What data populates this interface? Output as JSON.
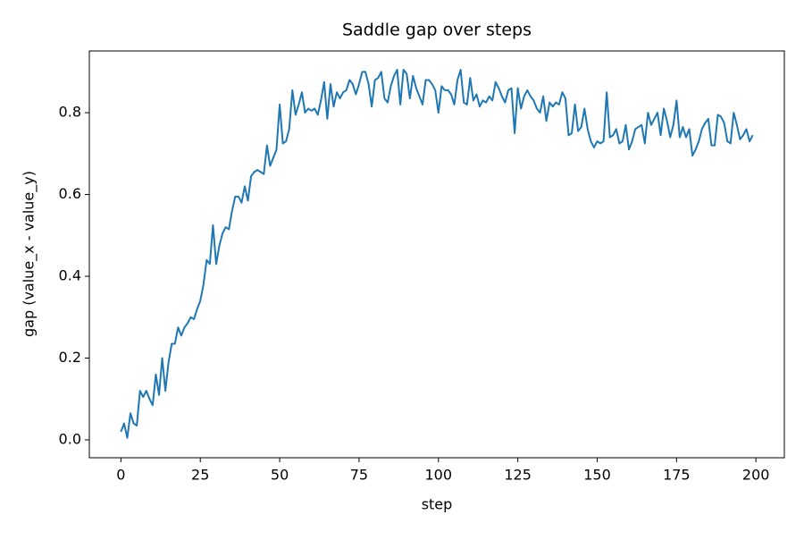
{
  "chart_data": {
    "type": "line",
    "title": "Saddle gap over steps",
    "xlabel": "step",
    "ylabel": "gap (value_x - value_y)",
    "color": "#1f77b4",
    "x": [
      0,
      1,
      2,
      3,
      4,
      5,
      6,
      7,
      8,
      9,
      10,
      11,
      12,
      13,
      14,
      15,
      16,
      17,
      18,
      19,
      20,
      21,
      22,
      23,
      24,
      25,
      26,
      27,
      28,
      29,
      30,
      31,
      32,
      33,
      34,
      35,
      36,
      37,
      38,
      39,
      40,
      41,
      42,
      43,
      44,
      45,
      46,
      47,
      48,
      49,
      50,
      51,
      52,
      53,
      54,
      55,
      56,
      57,
      58,
      59,
      60,
      61,
      62,
      63,
      64,
      65,
      66,
      67,
      68,
      69,
      70,
      71,
      72,
      73,
      74,
      75,
      76,
      77,
      78,
      79,
      80,
      81,
      82,
      83,
      84,
      85,
      86,
      87,
      88,
      89,
      90,
      91,
      92,
      93,
      94,
      95,
      96,
      97,
      98,
      99,
      100,
      101,
      102,
      103,
      104,
      105,
      106,
      107,
      108,
      109,
      110,
      111,
      112,
      113,
      114,
      115,
      116,
      117,
      118,
      119,
      120,
      121,
      122,
      123,
      124,
      125,
      126,
      127,
      128,
      129,
      130,
      131,
      132,
      133,
      134,
      135,
      136,
      137,
      138,
      139,
      140,
      141,
      142,
      143,
      144,
      145,
      146,
      147,
      148,
      149,
      150,
      151,
      152,
      153,
      154,
      155,
      156,
      157,
      158,
      159,
      160,
      161,
      162,
      163,
      164,
      165,
      166,
      167,
      168,
      169,
      170,
      171,
      172,
      173,
      174,
      175,
      176,
      177,
      178,
      179,
      180,
      181,
      182,
      183,
      184,
      185,
      186,
      187,
      188,
      189,
      190,
      191,
      192,
      193,
      194,
      195,
      196,
      197,
      198,
      199
    ],
    "values": [
      0.02,
      0.04,
      0.005,
      0.065,
      0.04,
      0.035,
      0.12,
      0.105,
      0.12,
      0.1,
      0.085,
      0.16,
      0.11,
      0.2,
      0.12,
      0.19,
      0.235,
      0.235,
      0.275,
      0.255,
      0.275,
      0.285,
      0.3,
      0.295,
      0.32,
      0.34,
      0.38,
      0.44,
      0.43,
      0.525,
      0.43,
      0.475,
      0.505,
      0.52,
      0.515,
      0.56,
      0.595,
      0.595,
      0.58,
      0.62,
      0.585,
      0.645,
      0.655,
      0.66,
      0.655,
      0.65,
      0.72,
      0.67,
      0.69,
      0.71,
      0.82,
      0.725,
      0.73,
      0.76,
      0.855,
      0.795,
      0.82,
      0.85,
      0.8,
      0.81,
      0.805,
      0.81,
      0.795,
      0.83,
      0.875,
      0.785,
      0.87,
      0.815,
      0.85,
      0.835,
      0.85,
      0.855,
      0.88,
      0.87,
      0.845,
      0.87,
      0.9,
      0.9,
      0.87,
      0.815,
      0.88,
      0.885,
      0.9,
      0.835,
      0.825,
      0.865,
      0.89,
      0.905,
      0.82,
      0.905,
      0.895,
      0.835,
      0.89,
      0.86,
      0.84,
      0.82,
      0.88,
      0.88,
      0.87,
      0.855,
      0.8,
      0.865,
      0.855,
      0.855,
      0.845,
      0.82,
      0.88,
      0.905,
      0.825,
      0.82,
      0.885,
      0.83,
      0.845,
      0.815,
      0.83,
      0.825,
      0.84,
      0.83,
      0.875,
      0.86,
      0.84,
      0.825,
      0.855,
      0.86,
      0.75,
      0.86,
      0.81,
      0.84,
      0.855,
      0.84,
      0.83,
      0.81,
      0.8,
      0.84,
      0.78,
      0.825,
      0.815,
      0.825,
      0.82,
      0.85,
      0.835,
      0.745,
      0.75,
      0.82,
      0.755,
      0.765,
      0.81,
      0.76,
      0.73,
      0.715,
      0.73,
      0.725,
      0.73,
      0.85,
      0.74,
      0.745,
      0.76,
      0.725,
      0.73,
      0.77,
      0.71,
      0.73,
      0.76,
      0.765,
      0.77,
      0.725,
      0.8,
      0.77,
      0.785,
      0.8,
      0.745,
      0.81,
      0.78,
      0.74,
      0.77,
      0.83,
      0.74,
      0.765,
      0.74,
      0.76,
      0.695,
      0.71,
      0.73,
      0.76,
      0.775,
      0.785,
      0.72,
      0.72,
      0.795,
      0.79,
      0.775,
      0.73,
      0.725,
      0.8,
      0.77,
      0.735,
      0.745,
      0.76,
      0.73,
      0.745
    ],
    "xlim": [
      -9.95,
      208.95
    ],
    "xticks": [
      0,
      25,
      50,
      75,
      100,
      125,
      150,
      175,
      200
    ],
    "ylim": [
      -0.0437,
      0.951
    ],
    "yticks": [
      {
        "value": 0,
        "label": "0.0"
      },
      0.2,
      0.4,
      0.6,
      0.8
    ]
  }
}
